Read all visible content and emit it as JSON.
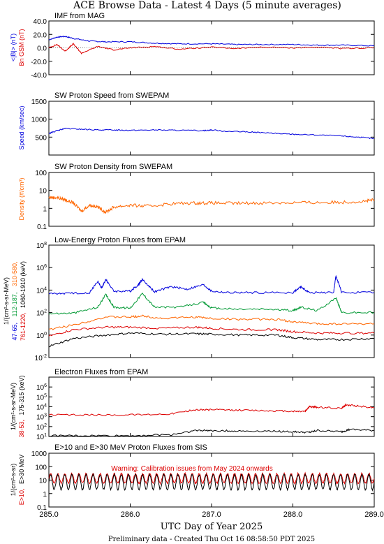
{
  "header": {
    "title": "ACE Browse Data - Latest 4 Days (5 minute averages)",
    "xlabel": "UTC Day of Year 2025",
    "footer": "Preliminary data - Created Thu Oct 16 08:58:50 PDT 2025"
  },
  "colors": {
    "blue": "#0000dd",
    "red": "#dd0000",
    "green": "#009933",
    "orange": "#ff6600",
    "black": "#000000"
  },
  "x_axis": {
    "range": [
      285.0,
      289.0
    ],
    "ticks": [
      285.0,
      286.0,
      287.0,
      288.0,
      289.0
    ],
    "tick_labels": [
      "285.0",
      "286.0",
      "287.0",
      "288.0",
      "289.0"
    ]
  },
  "chart_data": [
    {
      "id": "mag",
      "type": "line",
      "title": "IMF from MAG",
      "ylim": [
        -40,
        40
      ],
      "yticks": [
        -40,
        -20,
        0,
        20,
        40
      ],
      "ytick_labels": [
        "-40.0",
        "-20.0",
        "0.0",
        "20.0",
        "40.0"
      ],
      "ylabel_parts": [
        {
          "text": "<|B|> (nT)",
          "color": "#0000dd"
        },
        {
          "text": "Bn GSM (nT)",
          "color": "#dd0000"
        }
      ],
      "series": [
        {
          "color": "#0000dd",
          "x": [
            285.0,
            285.1,
            285.2,
            285.3,
            285.5,
            285.7,
            286.0,
            286.3,
            286.6,
            287.0,
            287.3,
            287.6,
            288.0,
            288.3,
            288.6,
            289.0
          ],
          "y": [
            12,
            16,
            17,
            14,
            10,
            9,
            9,
            7,
            6,
            6,
            5,
            5,
            5,
            4,
            4,
            3
          ]
        },
        {
          "color": "#dd0000",
          "x": [
            285.0,
            285.1,
            285.2,
            285.3,
            285.4,
            285.6,
            285.8,
            286.0,
            286.3,
            286.6,
            287.0,
            287.3,
            287.6,
            288.0,
            288.3,
            288.6,
            289.0
          ],
          "y": [
            0,
            5,
            -5,
            6,
            -8,
            2,
            -3,
            0,
            2,
            -2,
            1,
            -1,
            1,
            0,
            1,
            -1,
            0
          ]
        }
      ]
    },
    {
      "id": "speed",
      "type": "line",
      "title": "SW Proton Speed from SWEPAM",
      "ylim": [
        0,
        1500
      ],
      "log": false,
      "yticks": [
        500,
        1000,
        1500
      ],
      "ytick_labels": [
        "500",
        "1000",
        "1500"
      ],
      "ylabel_parts": [
        {
          "text": "Speed (km/sec)",
          "color": "#0000dd"
        }
      ],
      "series": [
        {
          "color": "#0000dd",
          "x": [
            285.0,
            285.1,
            285.2,
            285.4,
            285.6,
            285.8,
            286.0,
            286.3,
            286.6,
            286.9,
            287.0,
            287.2,
            287.5,
            287.8,
            288.0,
            288.3,
            288.6,
            288.8,
            289.0
          ],
          "y": [
            600,
            680,
            740,
            720,
            700,
            700,
            690,
            700,
            690,
            680,
            700,
            660,
            640,
            600,
            580,
            560,
            530,
            500,
            460
          ]
        }
      ]
    },
    {
      "id": "density",
      "type": "line",
      "title": "SW Proton Density from SWEPAM",
      "log": true,
      "ylim": [
        0.1,
        100
      ],
      "yticks": [
        0.1,
        1,
        10,
        100
      ],
      "ytick_labels": [
        "0.1",
        "1",
        "10",
        "100"
      ],
      "ylabel_parts": [
        {
          "text": "Density (#/cm³)",
          "color": "#ff6600"
        }
      ],
      "series": [
        {
          "color": "#ff6600",
          "x": [
            285.0,
            285.1,
            285.2,
            285.3,
            285.4,
            285.5,
            285.6,
            285.7,
            285.8,
            286.0,
            286.2,
            286.5,
            286.8,
            287.0,
            287.3,
            287.6,
            288.0,
            288.3,
            288.6,
            288.9,
            289.0
          ],
          "y": [
            4,
            4,
            3,
            2,
            0.7,
            1.5,
            1.2,
            0.6,
            1.2,
            1.5,
            1.3,
            1.8,
            2,
            2,
            1.9,
            2,
            2.1,
            2.1,
            2.2,
            2.5,
            3
          ]
        }
      ]
    },
    {
      "id": "protons",
      "type": "line",
      "title": "Low-Energy Proton Fluxes from EPAM",
      "log": true,
      "ylim": [
        0.01,
        100000000
      ],
      "yticks": [
        0.01,
        1,
        100,
        10000,
        1000000,
        100000000
      ],
      "ytick_labels": [
        "10^-2",
        "10^0",
        "10^2",
        "10^4",
        "10^6",
        "10^8"
      ],
      "ylabel_parts": [
        {
          "text": "1/(cm²-s-sr-MeV)",
          "color": "#000000"
        },
        {
          "text": "47-65,",
          "color": "#0000dd"
        },
        {
          "text": "112-187,",
          "color": "#009933"
        },
        {
          "text": "310-580,",
          "color": "#ff6600"
        },
        {
          "text": "761-1220,",
          "color": "#dd0000"
        },
        {
          "text": "1060-1910 (keV)",
          "color": "#000000"
        }
      ],
      "series": [
        {
          "color": "#0000dd",
          "x": [
            285.0,
            285.2,
            285.5,
            285.6,
            285.65,
            285.7,
            285.8,
            286.0,
            286.1,
            286.15,
            286.3,
            286.5,
            286.7,
            286.9,
            287.0,
            287.2,
            287.5,
            288.0,
            288.1,
            288.2,
            288.5,
            288.53,
            288.6,
            289.0
          ],
          "y": [
            5000,
            5000,
            6000,
            60000,
            15000,
            90000,
            8000,
            8000,
            30000,
            90000,
            7000,
            20000,
            12000,
            30000,
            8000,
            6000,
            6000,
            6000,
            20000,
            6000,
            6000,
            200000,
            6000,
            6000
          ]
        },
        {
          "color": "#009933",
          "x": [
            285.0,
            285.3,
            285.6,
            285.7,
            285.8,
            286.0,
            286.15,
            286.3,
            286.6,
            286.9,
            287.0,
            287.3,
            287.7,
            288.0,
            288.1,
            288.3,
            288.53,
            288.6,
            289.0
          ],
          "y": [
            80,
            90,
            300,
            4000,
            300,
            250,
            5000,
            300,
            300,
            800,
            250,
            200,
            200,
            150,
            300,
            150,
            2000,
            100,
            100
          ]
        },
        {
          "color": "#ff6600",
          "x": [
            285.0,
            285.3,
            285.7,
            286.0,
            286.15,
            286.4,
            286.8,
            287.0,
            287.4,
            287.8,
            288.0,
            288.3,
            288.6,
            289.0
          ],
          "y": [
            3,
            8,
            40,
            40,
            50,
            30,
            40,
            30,
            25,
            25,
            15,
            10,
            10,
            10
          ]
        },
        {
          "color": "#dd0000",
          "x": [
            285.0,
            285.3,
            285.7,
            286.0,
            286.4,
            286.8,
            287.0,
            287.4,
            287.8,
            288.0,
            288.3,
            288.6,
            289.0
          ],
          "y": [
            0.8,
            3,
            5,
            5,
            4,
            5,
            4,
            3,
            3,
            2,
            1.5,
            1.5,
            1.5
          ]
        },
        {
          "color": "#000000",
          "x": [
            285.0,
            285.3,
            285.7,
            286.0,
            286.4,
            286.8,
            287.0,
            287.4,
            287.8,
            288.0,
            288.3,
            288.6,
            289.0
          ],
          "y": [
            0.1,
            0.5,
            1,
            1.5,
            1.2,
            1.3,
            1.2,
            1,
            1,
            0.6,
            0.4,
            0.4,
            0.5
          ]
        }
      ]
    },
    {
      "id": "electrons",
      "type": "line",
      "title": "Electron Fluxes from EPAM",
      "log": true,
      "ylim": [
        10,
        10000000
      ],
      "yticks": [
        10,
        100,
        1000,
        10000,
        100000,
        1000000
      ],
      "ytick_labels": [
        "10^1",
        "10^2",
        "10^3",
        "10^4",
        "10^5",
        "10^6"
      ],
      "ylabel_parts": [
        {
          "text": "1/(cm²-s-sr-MeV)",
          "color": "#000000"
        },
        {
          "text": "38-53,",
          "color": "#dd0000"
        },
        {
          "text": "175-315 (keV)",
          "color": "#000000"
        }
      ],
      "series": [
        {
          "color": "#dd0000",
          "x": [
            285.0,
            285.5,
            286.0,
            286.5,
            286.8,
            287.0,
            287.3,
            287.7,
            288.0,
            288.15,
            288.2,
            288.3,
            288.6,
            288.65,
            288.8,
            289.0
          ],
          "y": [
            1500,
            1500,
            1500,
            2000,
            5000,
            5000,
            4500,
            4000,
            3500,
            3500,
            10000,
            9000,
            7000,
            15000,
            12000,
            8000
          ]
        },
        {
          "color": "#000000",
          "x": [
            285.0,
            285.5,
            286.0,
            286.5,
            286.8,
            287.0,
            287.3,
            287.7,
            288.0,
            288.2,
            288.3,
            288.6,
            288.7,
            289.0
          ],
          "y": [
            12,
            12,
            12,
            15,
            40,
            40,
            35,
            35,
            30,
            25,
            40,
            30,
            50,
            40
          ]
        }
      ]
    },
    {
      "id": "sis",
      "type": "line",
      "title": "E>10 and E>30 MeV Proton Fluxes from SIS",
      "log": true,
      "ylim": [
        0.1,
        1000
      ],
      "yticks": [
        0.1,
        1,
        10,
        100,
        1000
      ],
      "ytick_labels": [
        "0.1",
        "1",
        "10",
        "100",
        "1000"
      ],
      "ylabel_parts": [
        {
          "text": "1/(cm²-s-sr)",
          "color": "#000000"
        },
        {
          "text": "E>10,",
          "color": "#dd0000"
        },
        {
          "text": "E>30 MeV",
          "color": "#000000"
        }
      ],
      "annotation": "Warning: Calibration issues from May 2024 onwards",
      "series": [
        {
          "color": "#dd0000",
          "pattern": "oscillation",
          "x_range": [
            285.0,
            289.0
          ],
          "low": 6,
          "high": 30,
          "cycles": 46
        },
        {
          "color": "#000000",
          "pattern": "oscillation",
          "x_range": [
            285.0,
            289.0
          ],
          "low": 2,
          "high": 25,
          "cycles": 46
        }
      ]
    }
  ]
}
